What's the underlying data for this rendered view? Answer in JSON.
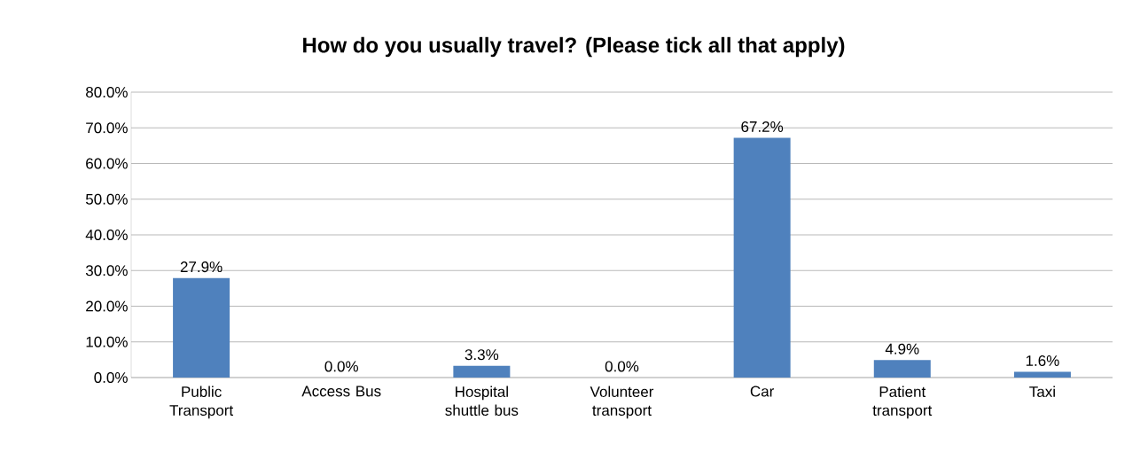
{
  "chart_data": {
    "type": "bar",
    "title": "How do you usually travel? (Please tick all that apply)",
    "categories": [
      "Public Transport",
      "Access Bus",
      "Hospital shuttle bus",
      "Volunteer transport",
      "Car",
      "Patient transport",
      "Taxi"
    ],
    "values": [
      27.9,
      0.0,
      3.3,
      0.0,
      67.2,
      4.9,
      1.6
    ],
    "value_labels": [
      "27.9%",
      "0.0%",
      "3.3%",
      "0.0%",
      "67.2%",
      "4.9%",
      "1.6%"
    ],
    "color": "#4f81bd",
    "ylim": [
      0,
      80
    ],
    "yticks": [
      {
        "value": 0,
        "label": "0.0%"
      },
      {
        "value": 10,
        "label": "10.0%"
      },
      {
        "value": 20,
        "label": "20.0%"
      },
      {
        "value": 30,
        "label": "30.0%"
      },
      {
        "value": 40,
        "label": "40.0%"
      },
      {
        "value": 50,
        "label": "50.0%"
      },
      {
        "value": 60,
        "label": "60.0%"
      },
      {
        "value": 70,
        "label": "70.0%"
      },
      {
        "value": 80,
        "label": "80.0%"
      }
    ],
    "grid": "y"
  }
}
